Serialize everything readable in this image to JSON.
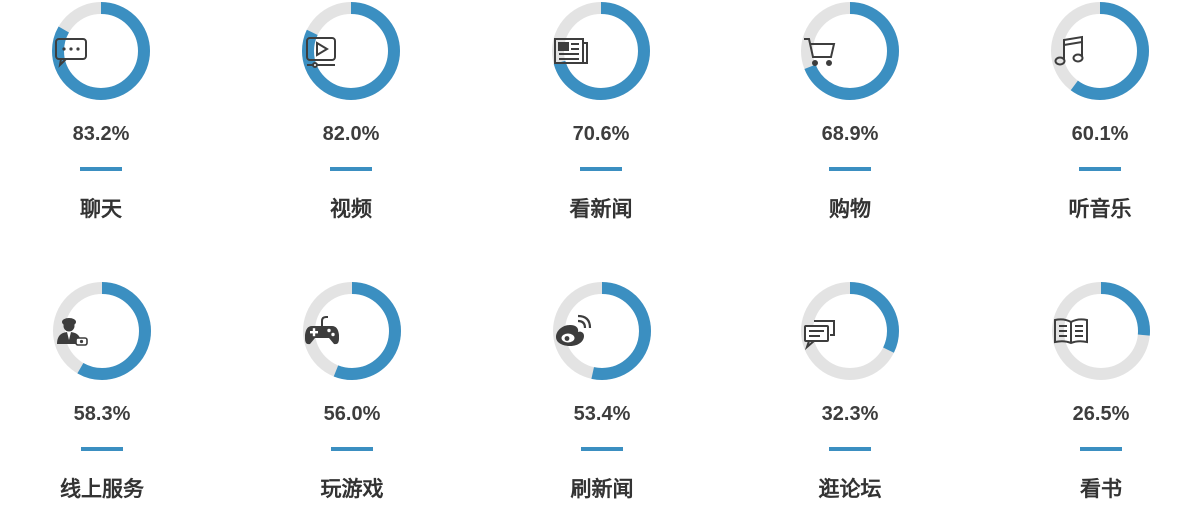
{
  "colors": {
    "track": "#e3e3e3",
    "fill": "#3b8fc1",
    "icon": "#3d3d3d",
    "divider": "#3b8fc1"
  },
  "chart_data": {
    "type": "donut",
    "items": [
      {
        "label": "聊天",
        "percent_text": "83.2%",
        "value": 83.2,
        "icon": "chat-bubble-icon"
      },
      {
        "label": "视频",
        "percent_text": "82.0%",
        "value": 82.0,
        "icon": "video-play-icon"
      },
      {
        "label": "看新闻",
        "percent_text": "70.6%",
        "value": 70.6,
        "icon": "newspaper-icon"
      },
      {
        "label": "购物",
        "percent_text": "68.9%",
        "value": 68.9,
        "icon": "shopping-cart-icon"
      },
      {
        "label": "听音乐",
        "percent_text": "60.1%",
        "value": 60.1,
        "icon": "music-note-icon"
      },
      {
        "label": "线上服务",
        "percent_text": "58.3%",
        "value": 58.3,
        "icon": "customer-service-icon"
      },
      {
        "label": "玩游戏",
        "percent_text": "56.0%",
        "value": 56.0,
        "icon": "gamepad-icon"
      },
      {
        "label": "刷新闻",
        "percent_text": "53.4%",
        "value": 53.4,
        "icon": "weibo-icon"
      },
      {
        "label": "逛论坛",
        "percent_text": "32.3%",
        "value": 32.3,
        "icon": "forum-bubbles-icon"
      },
      {
        "label": "看书",
        "percent_text": "26.5%",
        "value": 26.5,
        "icon": "open-book-icon"
      }
    ]
  }
}
